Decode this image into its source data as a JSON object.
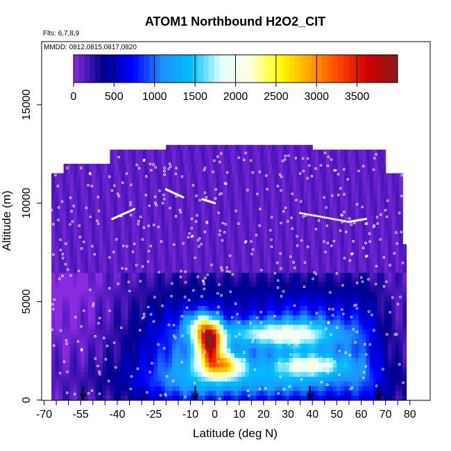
{
  "chart_data": {
    "type": "heatmap",
    "title": "ATOM1 Northbound H2O2_CIT",
    "annotations": [
      "Flts: 6,7,8,9",
      "MMDD: 0812,0815,0817,0820"
    ],
    "xlabel": "Latitude (deg N)",
    "ylabel": "Altitude (m)",
    "xlim": [
      -70,
      80
    ],
    "ylim": [
      0,
      17500
    ],
    "x_tick_labels": [
      "-70",
      "-55",
      "-40",
      "-25",
      "-10",
      "0",
      "10",
      "20",
      "30",
      "40",
      "50",
      "60",
      "70",
      "80"
    ],
    "y_tick_labels": [
      "0",
      "5000",
      "10000",
      "15000"
    ],
    "colorbar": {
      "min": 0,
      "max": 4000,
      "tick_labels": [
        "0",
        "500",
        "1000",
        "1500",
        "2000",
        "2500",
        "3000",
        "3500"
      ],
      "colors": [
        "#8a2be2",
        "#00008b",
        "#0000ff",
        "#1e90ff",
        "#00bfff",
        "#e0ffff",
        "#ffffe0",
        "#ffff00",
        "#ffa500",
        "#ff4500",
        "#cc0000",
        "#8b1a1a"
      ]
    },
    "arrow_latitudes": [
      -54,
      -8,
      39,
      67
    ],
    "approx_regions": [
      {
        "description": "H2O2 maximum",
        "lat_range": [
          -6,
          2
        ],
        "alt_range": [
          2000,
          4000
        ],
        "value_approx": 3600
      },
      {
        "description": "elevated band",
        "lat_range": [
          -5,
          10
        ],
        "alt_range": [
          1200,
          2500
        ],
        "value_approx": 2700
      },
      {
        "description": "moderate tropical lower troposphere",
        "lat_range": [
          -25,
          60
        ],
        "alt_range": [
          500,
          5000
        ],
        "value_approx": 1500
      },
      {
        "description": "high latitude / upper troposphere background",
        "lat_range": [
          -70,
          80
        ],
        "alt_range": [
          6000,
          13000
        ],
        "value_approx": 150
      }
    ]
  }
}
